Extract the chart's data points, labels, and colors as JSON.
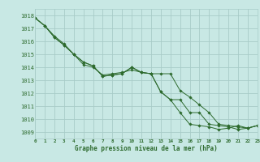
{
  "title": "Graphe pression niveau de la mer (hPa)",
  "background_color": "#c8e8e4",
  "grid_color": "#a8ccc8",
  "line_color": "#2d6a2d",
  "marker_color": "#2d6a2d",
  "xlim": [
    0,
    23
  ],
  "ylim": [
    1008.5,
    1018.5
  ],
  "yticks": [
    1009,
    1010,
    1011,
    1012,
    1013,
    1014,
    1015,
    1016,
    1017,
    1018
  ],
  "xticks": [
    0,
    1,
    2,
    3,
    4,
    5,
    6,
    7,
    8,
    9,
    10,
    11,
    12,
    13,
    14,
    15,
    16,
    17,
    18,
    19,
    20,
    21,
    22,
    23
  ],
  "series": [
    {
      "x": [
        0,
        1,
        2,
        3,
        4,
        5,
        6,
        7,
        8,
        9,
        10,
        11,
        12,
        13,
        14,
        15,
        16,
        17,
        18,
        19,
        20,
        21,
        22,
        23
      ],
      "y": [
        1017.8,
        1017.2,
        1016.3,
        1015.7,
        1015.0,
        1014.4,
        1014.1,
        1013.3,
        1013.4,
        1013.5,
        1014.0,
        1013.6,
        1013.5,
        1012.1,
        1011.5,
        1011.5,
        1010.5,
        1010.5,
        1009.6,
        1009.5,
        1009.4,
        1009.2,
        1009.3,
        1009.5
      ]
    },
    {
      "x": [
        0,
        1,
        2,
        3,
        4,
        5,
        6,
        7,
        8,
        9,
        10,
        11,
        12,
        13,
        14,
        15,
        16,
        17,
        18,
        19,
        20,
        21,
        22,
        23
      ],
      "y": [
        1017.8,
        1017.2,
        1016.4,
        1015.8,
        1015.0,
        1014.2,
        1014.0,
        1013.4,
        1013.5,
        1013.6,
        1013.8,
        1013.6,
        1013.5,
        1013.5,
        1013.5,
        1012.2,
        1011.7,
        1011.1,
        1010.5,
        1009.6,
        1009.5,
        1009.4,
        1009.3,
        1009.5
      ]
    },
    {
      "x": [
        0,
        1,
        2,
        3,
        4,
        5,
        6,
        7,
        8,
        9,
        10,
        11,
        12,
        13,
        14,
        15,
        16,
        17,
        18,
        19,
        20,
        21,
        22,
        23
      ],
      "y": [
        1017.8,
        1017.2,
        1016.3,
        1015.7,
        1015.0,
        1014.4,
        1014.1,
        1013.3,
        1013.4,
        1013.5,
        1014.0,
        1013.6,
        1013.5,
        1012.1,
        1011.5,
        1010.5,
        1009.6,
        1009.5,
        1009.4,
        1009.2,
        1009.3,
        1009.5,
        1009.3,
        1009.5
      ]
    }
  ]
}
